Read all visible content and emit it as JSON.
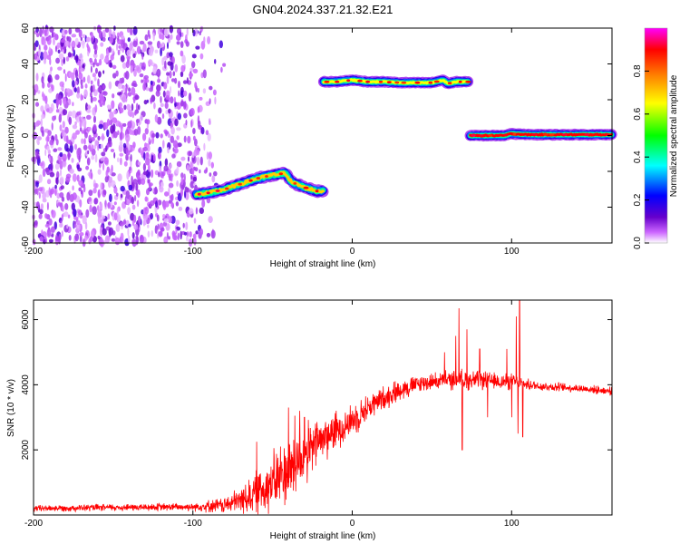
{
  "figure": {
    "title": "GN04.2024.337.21.32.E21"
  },
  "chart_data": [
    {
      "type": "heatmap",
      "title": "GN04.2024.337.21.32.E21",
      "xlabel": "Height of straight line (km)",
      "ylabel": "Frequency (Hz)",
      "xlim": [
        -200,
        163
      ],
      "ylim": [
        -60,
        60
      ],
      "x_ticks": [
        -200,
        -100,
        0,
        100
      ],
      "y_ticks": [
        -60,
        -40,
        -20,
        0,
        20,
        40,
        60
      ],
      "colorbar": {
        "label": "Normalized spectral amplitude",
        "range": [
          0,
          1
        ],
        "ticks": [
          0.0,
          0.2,
          0.4,
          0.6,
          0.8
        ],
        "colors": [
          "#ffffff",
          "#cc66ff",
          "#6600cc",
          "#0000ff",
          "#00ffff",
          "#00ff00",
          "#ffff00",
          "#ff8000",
          "#ff0000",
          "#ff00ff"
        ]
      },
      "noise_region": {
        "x": [
          -200,
          -80
        ],
        "y": [
          -60,
          60
        ],
        "amplitude": 0.12
      },
      "tracks": [
        {
          "name_hint": "low-branch",
          "amplitude": 0.7,
          "points": [
            [
              -98,
              -33
            ],
            [
              -90,
              -32
            ],
            [
              -80,
              -30
            ],
            [
              -70,
              -27
            ],
            [
              -60,
              -24
            ],
            [
              -50,
              -22
            ],
            [
              -42,
              -21
            ],
            [
              -38,
              -26
            ],
            [
              -30,
              -29
            ],
            [
              -22,
              -31
            ],
            [
              -18,
              -31
            ]
          ]
        },
        {
          "name_hint": "middle-branch",
          "amplitude": 0.65,
          "points": [
            [
              -18,
              30
            ],
            [
              -10,
              30
            ],
            [
              0,
              31
            ],
            [
              10,
              30
            ],
            [
              20,
              30
            ],
            [
              30,
              29.5
            ],
            [
              40,
              29.5
            ],
            [
              50,
              29.5
            ],
            [
              57,
              31
            ],
            [
              60,
              29
            ],
            [
              65,
              30
            ],
            [
              73,
              30
            ]
          ]
        },
        {
          "name_hint": "zero-branch",
          "amplitude": 0.9,
          "points": [
            [
              74,
              0
            ],
            [
              85,
              0
            ],
            [
              95,
              0
            ],
            [
              100,
              1
            ],
            [
              110,
              0.5
            ],
            [
              130,
              0.5
            ],
            [
              150,
              0.5
            ],
            [
              163,
              0.5
            ]
          ]
        }
      ]
    },
    {
      "type": "line",
      "title": "",
      "xlabel": "Height of straight line (km)",
      "ylabel": "SNR (10 * v/v)",
      "xlim": [
        -200,
        163
      ],
      "ylim": [
        0,
        6600
      ],
      "x_ticks": [
        -200,
        -100,
        0,
        100
      ],
      "y_ticks": [
        2000,
        4000,
        6000
      ],
      "color": "#ff0000",
      "envelope": {
        "x": [
          -200,
          -150,
          -100,
          -80,
          -70,
          -60,
          -50,
          -40,
          -30,
          -20,
          -10,
          0,
          10,
          20,
          30,
          40,
          50,
          60,
          70,
          80,
          90,
          100,
          110,
          120,
          140,
          163
        ],
        "mid": [
          200,
          230,
          250,
          300,
          450,
          700,
          1000,
          1400,
          1800,
          2300,
          2600,
          2900,
          3300,
          3600,
          3850,
          4000,
          4100,
          4150,
          4150,
          4150,
          4100,
          4100,
          4000,
          3950,
          3900,
          3800
        ],
        "amp": [
          120,
          130,
          150,
          300,
          500,
          800,
          1100,
          1300,
          1100,
          900,
          700,
          600,
          500,
          450,
          400,
          350,
          300,
          350,
          400,
          350,
          300,
          300,
          200,
          180,
          150,
          150
        ]
      },
      "spikes": [
        [
          -60,
          2250
        ],
        [
          -40,
          3300
        ],
        [
          -36,
          3050
        ],
        [
          -33,
          3200
        ],
        [
          -30,
          3000
        ],
        [
          -22,
          2600
        ],
        [
          58,
          5000
        ],
        [
          65,
          5500
        ],
        [
          67,
          6350
        ],
        [
          69,
          2000
        ],
        [
          72,
          5700
        ],
        [
          80,
          5100
        ],
        [
          85,
          3000
        ],
        [
          97,
          5100
        ],
        [
          100,
          3000
        ],
        [
          103,
          6100
        ],
        [
          104,
          2500
        ],
        [
          105,
          6650
        ],
        [
          107,
          2400
        ]
      ]
    }
  ]
}
